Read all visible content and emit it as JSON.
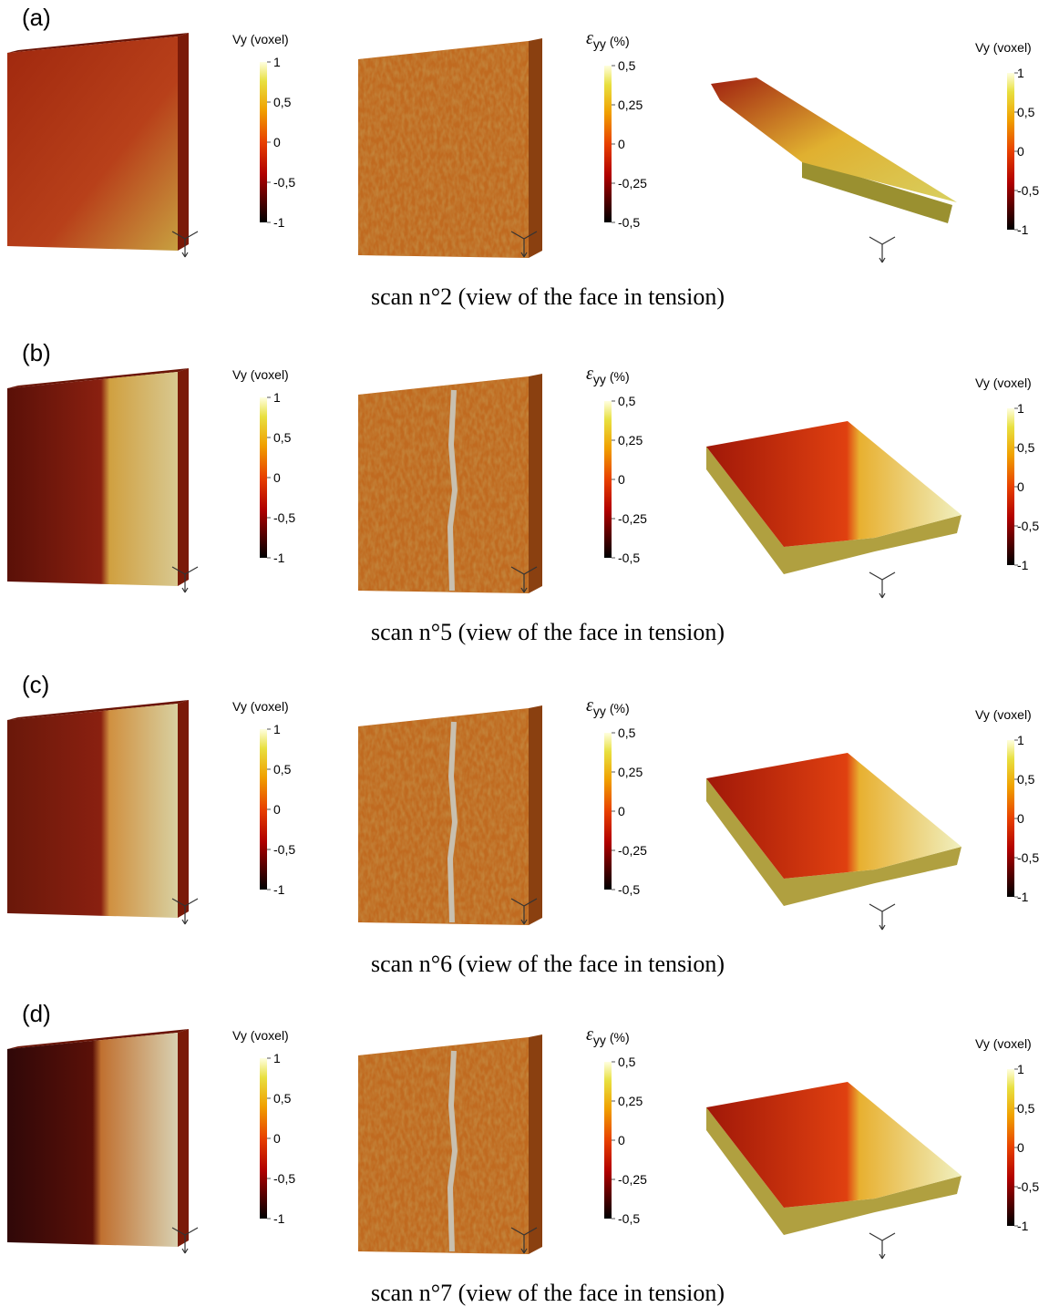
{
  "figure": {
    "rows": [
      {
        "label": "(a)",
        "caption": "scan n°2 (view of the face in tension)",
        "colorbars": [
          {
            "title": "Vy (voxel)",
            "ticks": [
              "1",
              "0,5",
              "0",
              "-0,5",
              "-1"
            ]
          },
          {
            "title": {
              "symbol": "ε",
              "subscript": "yy",
              "unit": "(%)"
            },
            "ticks": [
              "0,5",
              "0,25",
              "0",
              "-0,25",
              "-0,5"
            ]
          },
          {
            "title": "Vy (voxel)",
            "ticks": [
              "1",
              "0,5",
              "0",
              "-0,5",
              "-1"
            ]
          }
        ]
      },
      {
        "label": "(b)",
        "caption": "scan n°5 (view of the face in tension)",
        "colorbars": [
          {
            "title": "Vy (voxel)",
            "ticks": [
              "1",
              "0,5",
              "0",
              "-0,5",
              "-1"
            ]
          },
          {
            "title": {
              "symbol": "ε",
              "subscript": "yy",
              "unit": "(%)"
            },
            "ticks": [
              "0,5",
              "0,25",
              "0",
              "-0,25",
              "-0,5"
            ]
          },
          {
            "title": "Vy (voxel)",
            "ticks": [
              "1",
              "0,5",
              "0",
              "-0,5",
              "-1"
            ]
          }
        ]
      },
      {
        "label": "(c)",
        "caption": "scan n°6 (view of the face in tension)",
        "colorbars": [
          {
            "title": "Vy (voxel)",
            "ticks": [
              "1",
              "0,5",
              "0",
              "-0,5",
              "-1"
            ]
          },
          {
            "title": {
              "symbol": "ε",
              "subscript": "yy",
              "unit": "(%)"
            },
            "ticks": [
              "0,5",
              "0,25",
              "0",
              "-0,25",
              "-0,5"
            ]
          },
          {
            "title": "Vy (voxel)",
            "ticks": [
              "1",
              "0,5",
              "0",
              "-0,5",
              "-1"
            ]
          }
        ]
      },
      {
        "label": "(d)",
        "caption": "scan n°7 (view of the face in tension)",
        "colorbars": [
          {
            "title": "Vy (voxel)",
            "ticks": [
              "1",
              "0,5",
              "0",
              "-0,5",
              "-1"
            ]
          },
          {
            "title": {
              "symbol": "ε",
              "subscript": "yy",
              "unit": "(%)"
            },
            "ticks": [
              "0,5",
              "0,25",
              "0",
              "-0,25",
              "-0,5"
            ]
          },
          {
            "title": "Vy (voxel)",
            "ticks": [
              "1",
              "0,5",
              "0",
              "-0,5",
              "-1"
            ]
          }
        ]
      }
    ]
  }
}
